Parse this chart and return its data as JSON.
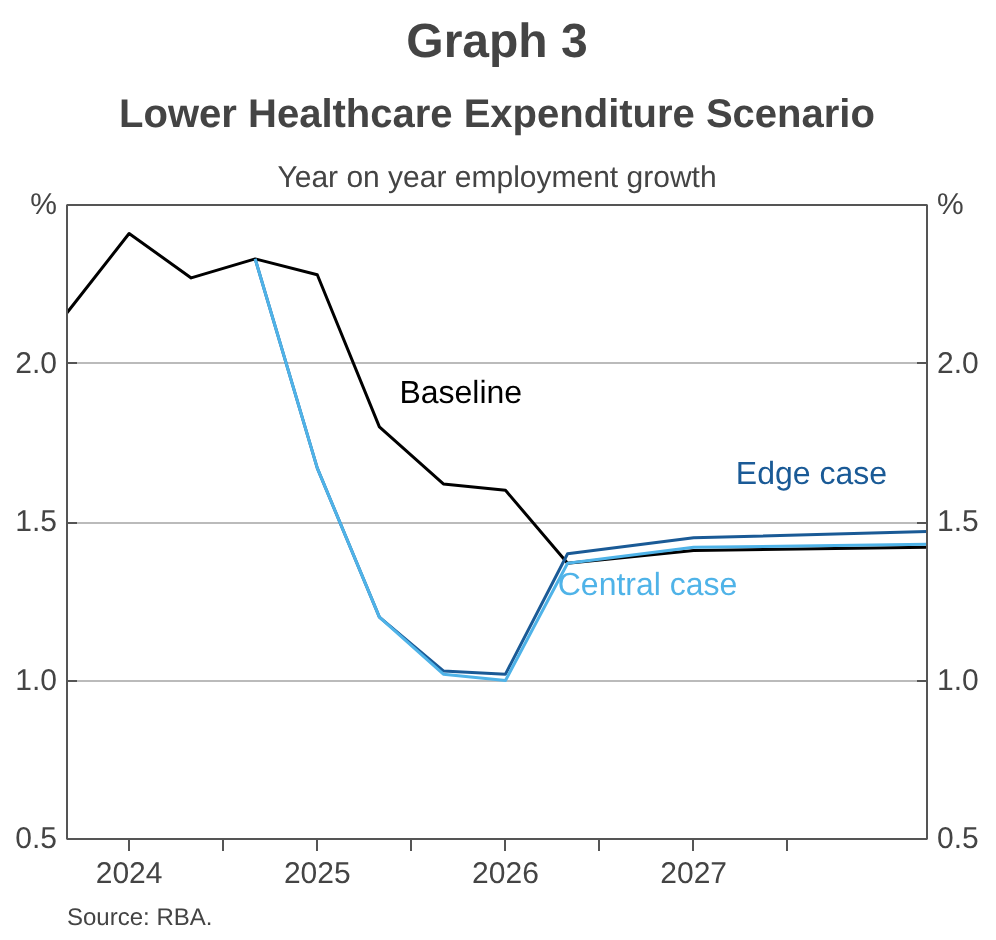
{
  "chart_data": {
    "type": "line",
    "title": "Graph 3",
    "subtitle": "Lower Healthcare Expenditure Scenario",
    "ylabel": "%",
    "y2label": "%",
    "annotations": [
      "Year on year employment growth",
      "Source:   RBA."
    ],
    "series": [
      {
        "name": "Baseline",
        "color": "#000000",
        "x": [
          2024.17,
          2024.5,
          2024.83,
          2025.17,
          2025.5,
          2025.83,
          2026.17,
          2026.5,
          2026.83,
          2027.5,
          2028.74
        ],
        "values": [
          2.16,
          2.41,
          2.27,
          2.33,
          2.28,
          1.8,
          1.62,
          1.6,
          1.37,
          1.41,
          1.42
        ]
      },
      {
        "name": "Edge case",
        "color": "#1a5a96",
        "x": [
          2025.17,
          2025.5,
          2025.83,
          2026.17,
          2026.5,
          2026.83,
          2027.5,
          2028.74
        ],
        "values": [
          2.33,
          1.67,
          1.2,
          1.03,
          1.02,
          1.4,
          1.45,
          1.47
        ]
      },
      {
        "name": "Central case",
        "color": "#4fb3e8",
        "x": [
          2025.17,
          2025.5,
          2025.83,
          2026.17,
          2026.5,
          2026.83,
          2027.5,
          2028.74
        ],
        "values": [
          2.33,
          1.67,
          1.2,
          1.02,
          1.0,
          1.37,
          1.42,
          1.43
        ]
      }
    ],
    "xlim": [
      2024.17,
      2028.74
    ],
    "xticks": [
      {
        "value": 2024.5,
        "label": "2024"
      },
      {
        "value": 2025,
        "label": null
      },
      {
        "value": 2025.5,
        "label": "2025"
      },
      {
        "value": 2026,
        "label": null
      },
      {
        "value": 2026.5,
        "label": "2026"
      },
      {
        "value": 2027,
        "label": null
      },
      {
        "value": 2027.5,
        "label": "2027"
      },
      {
        "value": 2028,
        "label": null
      }
    ],
    "ylim": [
      0.5,
      2.5
    ],
    "yticks": [
      {
        "value": 0.5,
        "label": "0.5"
      },
      {
        "value": 1.0,
        "label": "1.0"
      },
      {
        "value": 1.5,
        "label": "1.5"
      },
      {
        "value": 2.0,
        "label": "2.0"
      }
    ],
    "y2lim": [
      0.5,
      2.5
    ],
    "y2ticks": [
      {
        "value": 0.5,
        "label": "0.5"
      },
      {
        "value": 1.0,
        "label": "1.0"
      },
      {
        "value": 1.5,
        "label": "1.5"
      },
      {
        "value": 2.0,
        "label": "2.0"
      }
    ],
    "grid": "y",
    "legend": false,
    "line_style": "solid"
  }
}
